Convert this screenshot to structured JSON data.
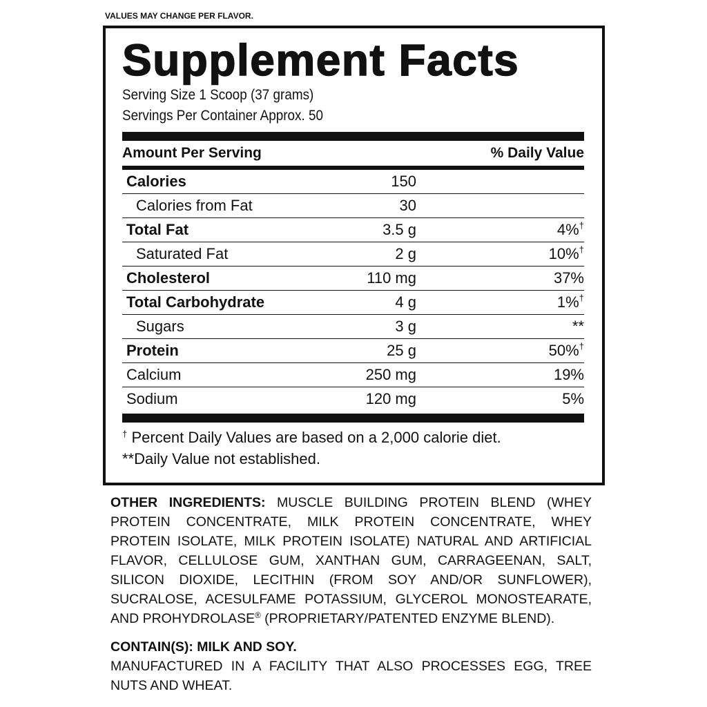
{
  "top_note": "VALUES MAY CHANGE PER FLAVOR.",
  "panel": {
    "title": "Supplement Facts",
    "serving_size": "Serving Size 1 Scoop (37 grams)",
    "servings_per_container": "Servings Per Container Approx. 50",
    "header_left": "Amount Per Serving",
    "header_right": "% Daily Value",
    "rows": [
      {
        "name": "Calories",
        "amount": "150",
        "dv": "",
        "dv_mark": "",
        "bold": true,
        "indent": false
      },
      {
        "name": "Calories from Fat",
        "amount": "30",
        "dv": "",
        "dv_mark": "",
        "bold": false,
        "indent": true
      },
      {
        "name": "Total Fat",
        "amount": "3.5 g",
        "dv": "4%",
        "dv_mark": "†",
        "bold": true,
        "indent": false
      },
      {
        "name": "Saturated Fat",
        "amount": "2 g",
        "dv": "10%",
        "dv_mark": "†",
        "bold": false,
        "indent": true
      },
      {
        "name": "Cholesterol",
        "amount": "110 mg",
        "dv": "37%",
        "dv_mark": "",
        "bold": true,
        "indent": false
      },
      {
        "name": "Total Carbohydrate",
        "amount": "4 g",
        "dv": "1%",
        "dv_mark": "†",
        "bold": true,
        "indent": false
      },
      {
        "name": "Sugars",
        "amount": "3 g",
        "dv": "**",
        "dv_mark": "",
        "bold": false,
        "indent": true
      },
      {
        "name": "Protein",
        "amount": "25 g",
        "dv": "50%",
        "dv_mark": "†",
        "bold": true,
        "indent": false
      },
      {
        "name": "Calcium",
        "amount": "250 mg",
        "dv": "19%",
        "dv_mark": "",
        "bold": false,
        "indent": false
      },
      {
        "name": "Sodium",
        "amount": "120 mg",
        "dv": "5%",
        "dv_mark": "",
        "bold": false,
        "indent": false
      }
    ],
    "footnote_mark": "†",
    "footnote_1": " Percent Daily Values are based on a 2,000 calorie diet.",
    "footnote_2": "**Daily Value not established."
  },
  "ingredients": {
    "label": "OTHER INGREDIENTS:",
    "text_1": " MUSCLE BUILDING PROTEIN BLEND (WHEY PROTEIN CONCENTRATE, MILK PROTEIN CONCENTRATE, WHEY PROTEIN ISOLATE, MILK PROTEIN ISOLATE) NATURAL AND ARTIFICIAL FLAVOR, CELLULOSE GUM, XANTHAN GUM, CARRAGEENAN, SALT, SILICON DIOXIDE, LECITHIN (FROM SOY AND/OR SUNFLOWER), SUCRALOSE, ACESULFAME POTASSIUM, GLYCEROL MONOSTEARATE, AND PROHYDROLASE",
    "reg_mark": "®",
    "text_2": " (PROPRIETARY/PATENTED ENZYME BLEND)."
  },
  "allergens": {
    "contains": "CONTAIN(S): MILK AND SOY.",
    "facility": "MANUFACTURED IN A FACILITY THAT ALSO PROCESSES EGG, TREE NUTS AND WHEAT."
  }
}
